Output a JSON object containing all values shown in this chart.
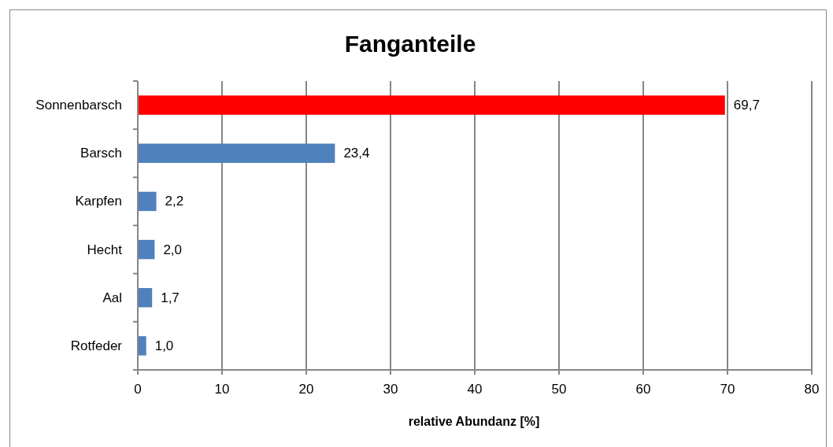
{
  "chart_data": {
    "type": "bar",
    "orientation": "horizontal",
    "title": "Fanganteile",
    "xlabel": "relative Abundanz [%]",
    "categories": [
      "Sonnenbarsch",
      "Barsch",
      "Karpfen",
      "Hecht",
      "Aal",
      "Rotfeder"
    ],
    "values": [
      69.7,
      23.4,
      2.2,
      2.0,
      1.7,
      1.0
    ],
    "colors": [
      "#ff0000",
      "#4f81bd",
      "#4f81bd",
      "#4f81bd",
      "#4f81bd",
      "#4f81bd"
    ],
    "value_labels": [
      "69,7",
      "23,4",
      "2,2",
      "2,0",
      "1,7",
      "1,0"
    ],
    "xlim": [
      0,
      80
    ],
    "xticks": [
      0,
      10,
      20,
      30,
      40,
      50,
      60,
      70,
      80
    ],
    "grid": "x"
  }
}
